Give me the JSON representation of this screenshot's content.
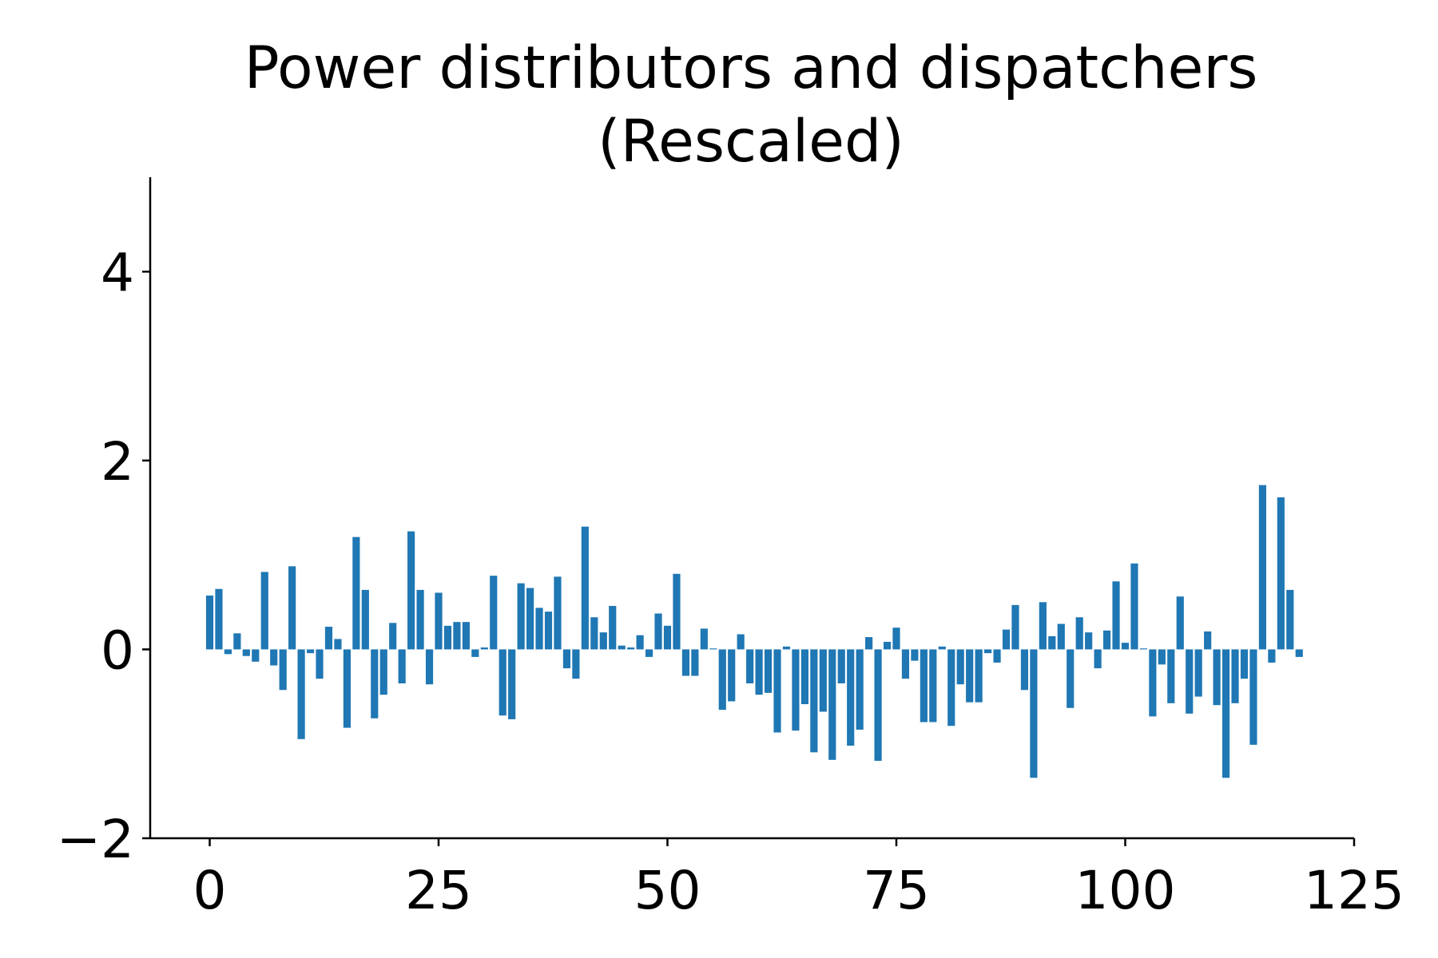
{
  "chart_data": {
    "type": "bar",
    "title": "Power distributors and dispatchers",
    "subtitle": "(Rescaled)",
    "xlabel": "",
    "ylabel": "",
    "xlim": [
      -6.5,
      125
    ],
    "ylim": [
      -2,
      5
    ],
    "xticks": [
      0,
      25,
      50,
      75,
      100,
      125
    ],
    "xtick_labels": [
      "0",
      "25",
      "50",
      "75",
      "100",
      "125"
    ],
    "yticks": [
      -2,
      0,
      2,
      4
    ],
    "ytick_labels": [
      "−2",
      "0",
      "2",
      "4"
    ],
    "grid": false,
    "bar_color": "#1f77b4",
    "x": [
      0,
      1,
      2,
      3,
      4,
      5,
      6,
      7,
      8,
      9,
      10,
      11,
      12,
      13,
      14,
      15,
      16,
      17,
      18,
      19,
      20,
      21,
      22,
      23,
      24,
      25,
      26,
      27,
      28,
      29,
      30,
      31,
      32,
      33,
      34,
      35,
      36,
      37,
      38,
      39,
      40,
      41,
      42,
      43,
      44,
      45,
      46,
      47,
      48,
      49,
      50,
      51,
      52,
      53,
      54,
      55,
      56,
      57,
      58,
      59,
      60,
      61,
      62,
      63,
      64,
      65,
      66,
      67,
      68,
      69,
      70,
      71,
      72,
      73,
      74,
      75,
      76,
      77,
      78,
      79,
      80,
      81,
      82,
      83,
      84,
      85,
      86,
      87,
      88,
      89,
      90,
      91,
      92,
      93,
      94,
      95,
      96,
      97,
      98,
      99,
      100,
      101,
      102,
      103,
      104,
      105,
      106,
      107,
      108,
      109,
      110,
      111,
      112,
      113,
      114,
      115,
      116,
      117,
      118,
      119
    ],
    "values": [
      0.57,
      0.64,
      -0.05,
      0.17,
      -0.07,
      -0.13,
      0.82,
      -0.17,
      -0.43,
      0.88,
      -0.95,
      -0.04,
      -0.31,
      0.24,
      0.11,
      -0.83,
      1.19,
      0.63,
      -0.73,
      -0.48,
      0.28,
      -0.36,
      1.25,
      0.63,
      -0.37,
      0.6,
      0.25,
      0.29,
      0.29,
      -0.08,
      0.02,
      0.78,
      -0.7,
      -0.74,
      0.7,
      0.65,
      0.44,
      0.4,
      0.77,
      -0.2,
      -0.31,
      1.3,
      0.34,
      0.18,
      0.46,
      0.04,
      0.02,
      0.15,
      -0.08,
      0.38,
      0.25,
      0.8,
      -0.28,
      -0.28,
      0.22,
      0.01,
      -0.64,
      -0.55,
      0.16,
      -0.36,
      -0.48,
      -0.46,
      -0.88,
      0.03,
      -0.86,
      -0.58,
      -1.09,
      -0.66,
      -1.17,
      -0.36,
      -1.02,
      -0.85,
      0.13,
      -1.18,
      0.08,
      0.23,
      -0.31,
      -0.12,
      -0.77,
      -0.77,
      0.03,
      -0.81,
      -0.37,
      -0.56,
      -0.56,
      -0.04,
      -0.14,
      0.21,
      0.47,
      -0.43,
      -1.36,
      0.5,
      0.14,
      0.27,
      -0.62,
      0.34,
      0.18,
      -0.2,
      0.2,
      0.72,
      0.07,
      0.91,
      0.01,
      -0.71,
      -0.16,
      -0.57,
      0.56,
      -0.68,
      -0.5,
      0.19,
      -0.59,
      -1.36,
      -0.57,
      -0.31,
      -1.01,
      1.74,
      -0.14,
      1.61,
      0.63,
      -0.08
    ]
  }
}
